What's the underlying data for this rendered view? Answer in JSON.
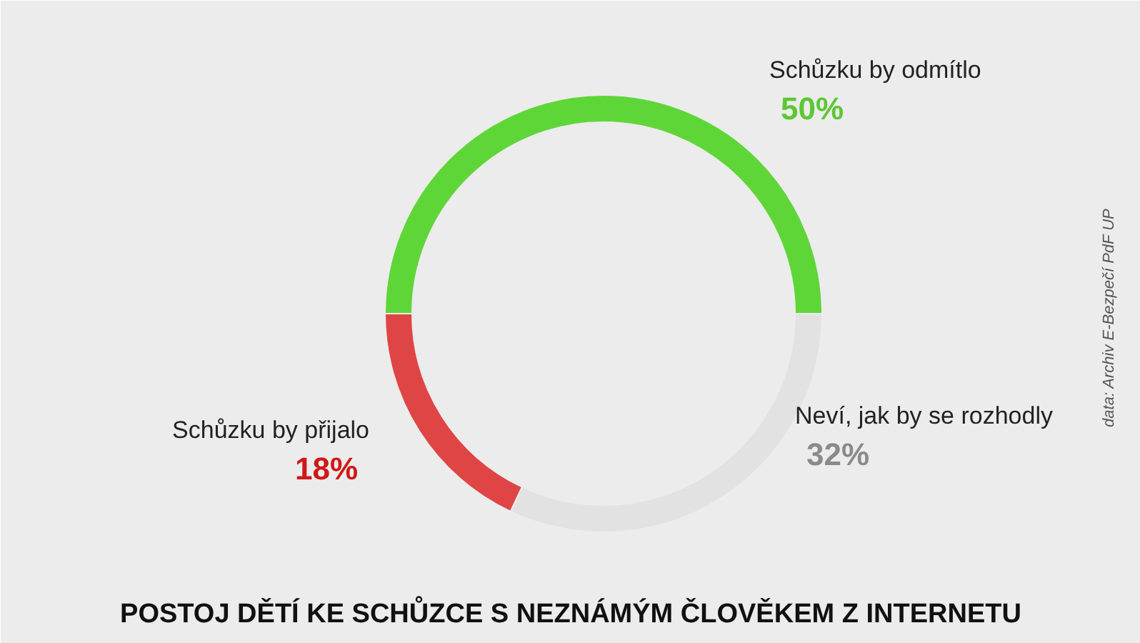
{
  "chart_data": {
    "type": "donut",
    "title": "POSTOJ DĚTÍ KE SCHŮZCE S NEZNÁMÝM ČLOVĚKEM Z INTERNETU",
    "categories": [
      "Schůzku by odmítlo",
      "Neví, jak by se rozhodly",
      "Schůzku by přijalo"
    ],
    "values": [
      50,
      32,
      18
    ],
    "colors": [
      "#5fd638",
      "#e2e2e2",
      "#e04545"
    ],
    "value_labels": [
      "50%",
      "32%",
      "18%"
    ],
    "annotations": [
      "data: Archiv E-Bezpečí PdF UP"
    ]
  }
}
